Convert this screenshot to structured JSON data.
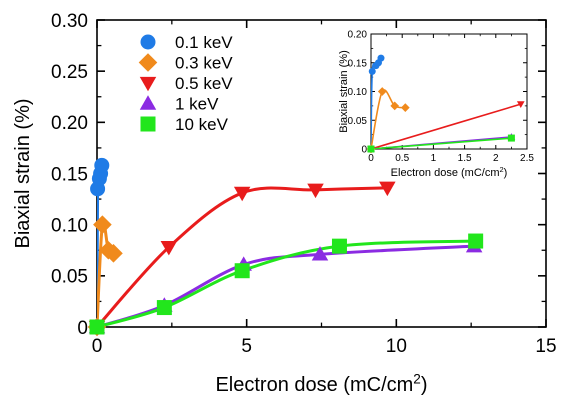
{
  "chart_data": [
    {
      "type": "scatter",
      "xlabel": "Electron dose (mC/cm",
      "xlabel_sup": "2",
      "xlabel_end": ")",
      "ylabel": "Biaxial strain (%)",
      "xlim": [
        0,
        15
      ],
      "ylim": [
        0,
        0.3
      ],
      "xticks": [
        0,
        5,
        10,
        15
      ],
      "xtick_labels": [
        "0",
        "5",
        "10",
        "15"
      ],
      "yticks": [
        0,
        0.05,
        0.1,
        0.15,
        0.2,
        0.25,
        0.3
      ],
      "ytick_labels": [
        "0",
        "0.05",
        "0.10",
        "0.15",
        "0.20",
        "0.25",
        "0.30"
      ],
      "grid": false,
      "legend_position": "top-left",
      "series": [
        {
          "name": "0.1 keV",
          "color": "#1f7be6",
          "marker": "circle",
          "x": [
            0,
            0.02,
            0.08,
            0.12,
            0.16
          ],
          "y": [
            0,
            0.135,
            0.145,
            0.15,
            0.158
          ]
        },
        {
          "name": "0.3 keV",
          "color": "#f08a1c",
          "marker": "diamond",
          "x": [
            0,
            0.18,
            0.38,
            0.55
          ],
          "y": [
            0,
            0.1,
            0.075,
            0.072
          ]
        },
        {
          "name": "0.5 keV",
          "color": "#e81c1c",
          "marker": "triangle-down",
          "x": [
            0,
            2.4,
            4.85,
            7.3,
            9.7
          ],
          "y": [
            0,
            0.078,
            0.131,
            0.134,
            0.136
          ]
        },
        {
          "name": "1 keV",
          "color": "#8b2be2",
          "marker": "triangle-up",
          "x": [
            0,
            2.25,
            4.9,
            7.45,
            12.6
          ],
          "y": [
            0,
            0.021,
            0.061,
            0.071,
            0.079
          ]
        },
        {
          "name": "10 keV",
          "color": "#22e61c",
          "marker": "square",
          "x": [
            0,
            2.25,
            4.85,
            8.1,
            12.65
          ],
          "y": [
            0,
            0.019,
            0.055,
            0.079,
            0.084
          ]
        }
      ]
    },
    {
      "type": "scatter",
      "xlabel": "Electron dose (mC/cm",
      "xlabel_sup": "2",
      "xlabel_end": ")",
      "ylabel": "Biaxial strain (%)",
      "xlim": [
        0,
        2.5
      ],
      "ylim": [
        0,
        0.2
      ],
      "xticks": [
        0,
        0.5,
        1,
        1.5,
        2,
        2.5
      ],
      "xtick_labels": [
        "0",
        "0.5",
        "1",
        "1.5",
        "2",
        "2.5"
      ],
      "yticks": [
        0,
        0.05,
        0.1,
        0.15,
        0.2
      ],
      "ytick_labels": [
        "0",
        "0.05",
        "0.10",
        "0.15",
        "0.20"
      ],
      "grid": false,
      "legend_position": "none",
      "series": [
        {
          "color": "#1f7be6",
          "marker": "circle",
          "x": [
            0,
            0.02,
            0.08,
            0.12,
            0.16
          ],
          "y": [
            0,
            0.135,
            0.145,
            0.15,
            0.158
          ]
        },
        {
          "color": "#f08a1c",
          "marker": "diamond",
          "x": [
            0,
            0.18,
            0.38,
            0.55
          ],
          "y": [
            0,
            0.1,
            0.075,
            0.072
          ]
        },
        {
          "color": "#e81c1c",
          "marker": "triangle-down",
          "x": [
            0,
            2.4
          ],
          "y": [
            0,
            0.078
          ]
        },
        {
          "color": "#8b2be2",
          "marker": "triangle-up",
          "x": [
            0,
            2.25
          ],
          "y": [
            0,
            0.021
          ]
        },
        {
          "color": "#22e61c",
          "marker": "square",
          "x": [
            0,
            2.25
          ],
          "y": [
            0,
            0.019
          ]
        }
      ]
    }
  ]
}
